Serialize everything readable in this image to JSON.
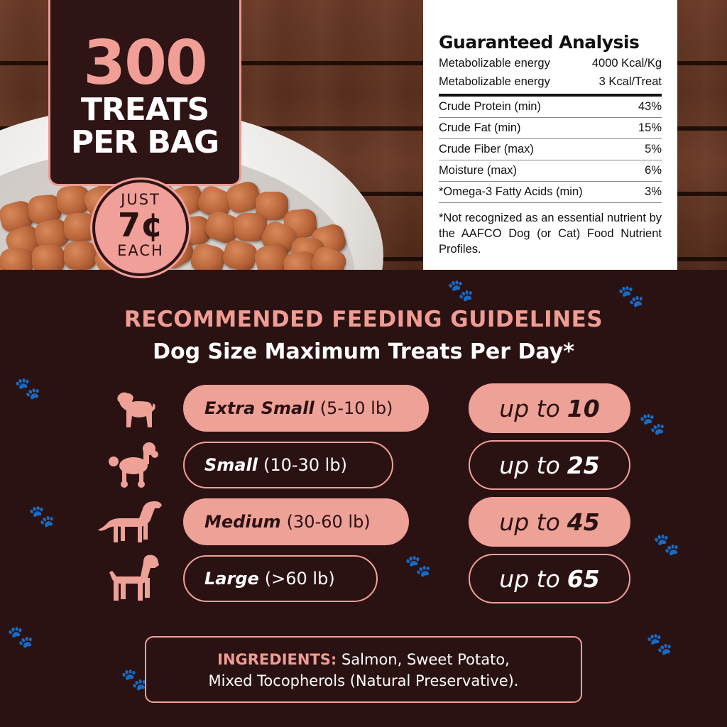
{
  "badge": {
    "number": "300",
    "line1": "TREATS",
    "line2": "PER BAG",
    "price_top": "JUST",
    "price_value": "7¢",
    "price_bottom": "EACH"
  },
  "analysis": {
    "title": "Guaranteed Analysis",
    "energy": [
      {
        "label": "Metabolizable energy",
        "value": "4000 Kcal/Kg"
      },
      {
        "label": "Metabolizable energy",
        "value": "3 Kcal/Treat"
      }
    ],
    "rows": [
      {
        "label": "Crude Protein (min)",
        "value": "43%"
      },
      {
        "label": "Crude Fat (min)",
        "value": "15%"
      },
      {
        "label": "Crude Fiber (max)",
        "value": "5%"
      },
      {
        "label": "Moisture (max)",
        "value": "6%"
      },
      {
        "label": "*Omega-3 Fatty Acids (min)",
        "value": "3%"
      }
    ],
    "note": "*Not recognized as an essential nutrient by the AAFCO Dog (or Cat) Food Nutrient Profiles."
  },
  "guidelines": {
    "heading": "RECOMMENDED FEEDING GUIDELINES",
    "subheading": "Dog Size Maximum Treats Per Day*",
    "rows": [
      {
        "size": "Extra Small",
        "range": "(5-10 lb)",
        "qty_prefix": "up to",
        "qty": "10",
        "dog_icon": "pug-icon"
      },
      {
        "size": "Small",
        "range": "(10-30 lb)",
        "qty_prefix": "up to",
        "qty": "25",
        "dog_icon": "poodle-icon"
      },
      {
        "size": "Medium",
        "range": "(30-60 lb)",
        "qty_prefix": "up to",
        "qty": "45",
        "dog_icon": "setter-icon"
      },
      {
        "size": "Large",
        "range": "(>60 lb)",
        "qty_prefix": "up to",
        "qty": "65",
        "dog_icon": "boxer-icon"
      }
    ]
  },
  "ingredients": {
    "label": "INGREDIENTS:",
    "line1": " Salmon, Sweet Potato,",
    "line2": "Mixed Tocopherols (Natural Preservative)."
  },
  "colors": {
    "background": "#2a1213",
    "accent": "#eea197",
    "heading": "#f09c92"
  }
}
